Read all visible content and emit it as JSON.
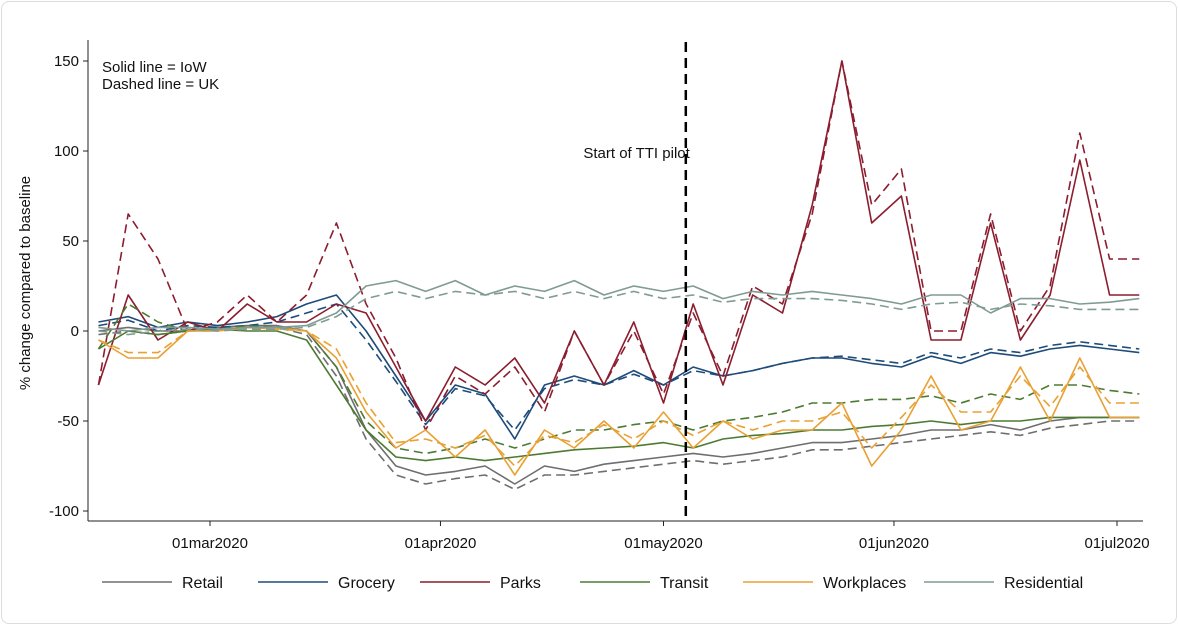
{
  "chart_data": {
    "type": "line",
    "title": "",
    "ylabel": "% change compared to baseline",
    "xlabel": "",
    "ylim": [
      -100,
      155
    ],
    "yticks": [
      -100,
      -50,
      0,
      50,
      100,
      150
    ],
    "xlim": [
      "2020-02-15",
      "2020-07-05"
    ],
    "xticks": [
      {
        "date": "2020-03-01",
        "label": "01mar2020"
      },
      {
        "date": "2020-04-01",
        "label": "01apr2020"
      },
      {
        "date": "2020-05-01",
        "label": "01may2020"
      },
      {
        "date": "2020-06-01",
        "label": "01jun2020"
      },
      {
        "date": "2020-07-01",
        "label": "01jul2020"
      }
    ],
    "grid": false,
    "legend_placement": "bottom",
    "annotations": {
      "line_style_note": [
        "Solid line = IoW",
        "Dashed line = UK"
      ],
      "vline": {
        "date": "2020-05-04",
        "label": "Start of TTI pilot",
        "style": "dashed",
        "color": "#000000"
      }
    },
    "x": [
      "2020-02-15",
      "2020-02-19",
      "2020-02-23",
      "2020-02-27",
      "2020-03-02",
      "2020-03-06",
      "2020-03-10",
      "2020-03-14",
      "2020-03-18",
      "2020-03-22",
      "2020-03-26",
      "2020-03-30",
      "2020-04-03",
      "2020-04-07",
      "2020-04-11",
      "2020-04-15",
      "2020-04-19",
      "2020-04-23",
      "2020-04-27",
      "2020-05-01",
      "2020-05-05",
      "2020-05-09",
      "2020-05-13",
      "2020-05-17",
      "2020-05-21",
      "2020-05-25",
      "2020-05-29",
      "2020-06-02",
      "2020-06-06",
      "2020-06-10",
      "2020-06-14",
      "2020-06-18",
      "2020-06-22",
      "2020-06-26",
      "2020-06-30",
      "2020-07-04"
    ],
    "categories": [
      {
        "name": "Retail",
        "color": "#6e6e6e"
      },
      {
        "name": "Grocery",
        "color": "#1d4b7a"
      },
      {
        "name": "Parks",
        "color": "#8b1d2e"
      },
      {
        "name": "Transit",
        "color": "#4d7a32"
      },
      {
        "name": "Workplaces",
        "color": "#e8a134"
      },
      {
        "name": "Residential",
        "color": "#809b93"
      }
    ],
    "series": [
      {
        "category": "Retail",
        "region": "IoW",
        "style": "solid",
        "values": [
          0,
          2,
          0,
          0,
          2,
          3,
          3,
          0,
          -20,
          -55,
          -75,
          -80,
          -78,
          -75,
          -85,
          -75,
          -78,
          -74,
          -72,
          -70,
          -68,
          -70,
          -68,
          -65,
          -62,
          -62,
          -60,
          -58,
          -55,
          -55,
          -52,
          -55,
          -50,
          -48,
          -48,
          -48
        ]
      },
      {
        "category": "Retail",
        "region": "UK",
        "style": "dashed",
        "values": [
          -2,
          0,
          -2,
          0,
          1,
          2,
          2,
          -2,
          -25,
          -60,
          -80,
          -85,
          -82,
          -80,
          -88,
          -80,
          -80,
          -78,
          -76,
          -74,
          -72,
          -74,
          -72,
          -70,
          -66,
          -66,
          -64,
          -62,
          -60,
          -58,
          -56,
          -58,
          -54,
          -52,
          -50,
          -50
        ]
      },
      {
        "category": "Grocery",
        "region": "IoW",
        "style": "solid",
        "values": [
          5,
          8,
          2,
          5,
          3,
          5,
          8,
          15,
          20,
          0,
          -25,
          -50,
          -30,
          -35,
          -60,
          -30,
          -25,
          -30,
          -22,
          -30,
          -20,
          -25,
          -22,
          -18,
          -15,
          -15,
          -18,
          -20,
          -14,
          -18,
          -12,
          -14,
          -10,
          -8,
          -10,
          -12
        ]
      },
      {
        "category": "Grocery",
        "region": "UK",
        "style": "dashed",
        "values": [
          3,
          6,
          0,
          3,
          2,
          3,
          5,
          10,
          15,
          -5,
          -28,
          -52,
          -32,
          -36,
          -55,
          -32,
          -27,
          -30,
          -24,
          -30,
          -22,
          -25,
          -22,
          -18,
          -15,
          -14,
          -16,
          -18,
          -12,
          -15,
          -10,
          -12,
          -8,
          -6,
          -8,
          -10
        ]
      },
      {
        "category": "Parks",
        "region": "IoW",
        "style": "solid",
        "values": [
          -30,
          20,
          -5,
          5,
          0,
          15,
          5,
          5,
          15,
          10,
          -20,
          -50,
          -20,
          -30,
          -15,
          -40,
          0,
          -30,
          5,
          -40,
          15,
          -30,
          20,
          10,
          70,
          150,
          60,
          75,
          -5,
          -5,
          60,
          -5,
          20,
          95,
          20,
          20
        ]
      },
      {
        "category": "Parks",
        "region": "UK",
        "style": "dashed",
        "values": [
          -30,
          65,
          40,
          0,
          5,
          20,
          5,
          20,
          60,
          15,
          -15,
          -55,
          -25,
          -35,
          -20,
          -45,
          0,
          -30,
          0,
          -35,
          10,
          -25,
          25,
          15,
          65,
          150,
          70,
          90,
          0,
          0,
          65,
          0,
          25,
          110,
          40,
          40
        ]
      },
      {
        "category": "Transit",
        "region": "IoW",
        "style": "solid",
        "values": [
          -10,
          0,
          -2,
          0,
          1,
          0,
          0,
          -5,
          -30,
          -55,
          -70,
          -72,
          -70,
          -72,
          -70,
          -68,
          -66,
          -65,
          -64,
          -62,
          -65,
          -60,
          -58,
          -57,
          -55,
          -55,
          -53,
          -52,
          -50,
          -52,
          -50,
          -50,
          -48,
          -48,
          -48,
          -48
        ]
      },
      {
        "category": "Transit",
        "region": "UK",
        "style": "dashed",
        "values": [
          -10,
          15,
          5,
          0,
          1,
          3,
          2,
          0,
          -20,
          -50,
          -65,
          -68,
          -65,
          -60,
          -65,
          -60,
          -55,
          -55,
          -52,
          -50,
          -55,
          -50,
          -48,
          -45,
          -40,
          -40,
          -38,
          -38,
          -36,
          -40,
          -35,
          -38,
          -30,
          -30,
          -33,
          -35
        ]
      },
      {
        "category": "Workplaces",
        "region": "IoW",
        "style": "solid",
        "values": [
          -5,
          -15,
          -15,
          0,
          0,
          2,
          2,
          0,
          -15,
          -45,
          -65,
          -55,
          -70,
          -55,
          -80,
          -55,
          -65,
          -50,
          -65,
          -45,
          -65,
          -50,
          -60,
          -55,
          -55,
          -40,
          -75,
          -55,
          -25,
          -55,
          -50,
          -20,
          -50,
          -15,
          -48,
          -48
        ]
      },
      {
        "category": "Workplaces",
        "region": "UK",
        "style": "dashed",
        "values": [
          -5,
          -12,
          -12,
          0,
          0,
          2,
          1,
          0,
          -10,
          -40,
          -62,
          -60,
          -65,
          -58,
          -75,
          -58,
          -62,
          -52,
          -60,
          -50,
          -58,
          -50,
          -55,
          -50,
          -50,
          -45,
          -65,
          -48,
          -30,
          -45,
          -45,
          -25,
          -42,
          -20,
          -40,
          -40
        ]
      },
      {
        "category": "Residential",
        "region": "IoW",
        "style": "solid",
        "values": [
          2,
          0,
          2,
          2,
          1,
          2,
          2,
          3,
          10,
          25,
          28,
          22,
          28,
          20,
          25,
          22,
          28,
          20,
          25,
          22,
          25,
          18,
          22,
          20,
          22,
          20,
          18,
          15,
          20,
          20,
          10,
          18,
          18,
          15,
          16,
          18
        ]
      },
      {
        "category": "Residential",
        "region": "UK",
        "style": "dashed",
        "values": [
          0,
          -2,
          0,
          1,
          0,
          1,
          1,
          2,
          8,
          18,
          22,
          18,
          22,
          20,
          22,
          18,
          22,
          18,
          22,
          18,
          20,
          16,
          18,
          18,
          18,
          17,
          15,
          12,
          15,
          16,
          12,
          15,
          14,
          12,
          12,
          12
        ]
      }
    ]
  }
}
